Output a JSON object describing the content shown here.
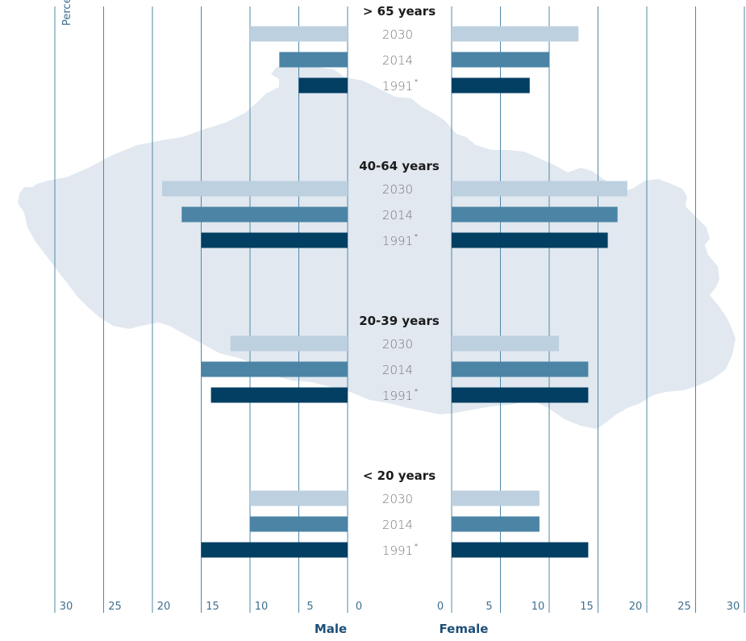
{
  "chart_data": {
    "type": "bar",
    "orientation": "horizontal-pyramid",
    "axis_unit_label": "Percent",
    "sides": [
      "Male",
      "Female"
    ],
    "axis_ticks": [
      30,
      25,
      20,
      15,
      10,
      5,
      0
    ],
    "xlim": [
      0,
      30
    ],
    "years": [
      "2030",
      "2014",
      "1991"
    ],
    "year_footnote_mark": [
      "",
      "",
      "*"
    ],
    "series_colors": {
      "2030": "#bdd0df",
      "2014": "#4b84a5",
      "1991": "#023f63"
    },
    "groups": [
      {
        "label": "> 65 years",
        "male": {
          "2030": 10,
          "2014": 7,
          "1991": 5
        },
        "female": {
          "2030": 13,
          "2014": 10,
          "1991": 8
        }
      },
      {
        "label": "40-64 years",
        "male": {
          "2030": 19,
          "2014": 17,
          "1991": 15
        },
        "female": {
          "2030": 18,
          "2014": 17,
          "1991": 16
        }
      },
      {
        "label": "20-39 years",
        "male": {
          "2030": 12,
          "2014": 15,
          "1991": 14
        },
        "female": {
          "2030": 11,
          "2014": 14,
          "1991": 14
        }
      },
      {
        "label": "< 20 years",
        "male": {
          "2030": 10,
          "2014": 10,
          "1991": 15
        },
        "female": {
          "2030": 9,
          "2014": 9,
          "1991": 14
        }
      }
    ],
    "grid": true,
    "background_map": true
  }
}
